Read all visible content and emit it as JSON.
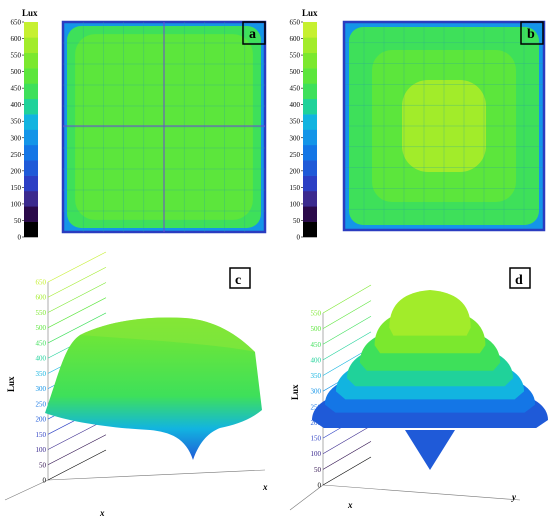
{
  "chart_data": [
    {
      "type": "heatmap",
      "panel": "a",
      "colorbar_title": "Lux",
      "colorbar_ticks": [
        0,
        50,
        100,
        150,
        200,
        250,
        300,
        350,
        400,
        450,
        500,
        550,
        600,
        650
      ],
      "zlim": [
        0,
        650
      ],
      "grid": true,
      "levels": [
        {
          "from": 0.0,
          "value": 290
        },
        {
          "from": 0.04,
          "value": 450
        },
        {
          "from": 0.12,
          "value": 470
        },
        {
          "from": 0.35,
          "value": 480
        }
      ]
    },
    {
      "type": "heatmap",
      "panel": "b",
      "colorbar_title": "Lux",
      "colorbar_ticks": [
        0,
        50,
        100,
        150,
        200,
        250,
        300,
        350,
        400,
        450,
        500,
        550,
        600,
        650
      ],
      "zlim": [
        0,
        650
      ],
      "grid": true,
      "levels": [
        {
          "from": 0.0,
          "value": 300
        },
        {
          "from": 0.05,
          "value": 450
        },
        {
          "from": 0.28,
          "value": 500
        },
        {
          "from": 0.58,
          "value": 560
        }
      ]
    },
    {
      "type": "surface3d",
      "panel": "c",
      "zlabel": "Lux",
      "xlabel": "x",
      "ylabel": "x",
      "zticks": [
        0,
        50,
        100,
        150,
        200,
        250,
        300,
        350,
        400,
        450,
        500,
        550,
        600,
        650
      ],
      "zlim": [
        0,
        650
      ],
      "peak": 480
    },
    {
      "type": "surface3d",
      "panel": "d",
      "zlabel": "Lux",
      "xlabel": "x",
      "ylabel": "y",
      "zticks": [
        0,
        50,
        100,
        150,
        200,
        250,
        300,
        350,
        400,
        450,
        500,
        550
      ],
      "zlim": [
        0,
        550
      ],
      "peak": 560
    }
  ],
  "colors": {
    "colorbar": [
      "#000000",
      "#2a0a4a",
      "#3b2a8e",
      "#2c3fc4",
      "#1f5ad8",
      "#1476e6",
      "#1495e8",
      "#12b4e0",
      "#20d29a",
      "#3ee05a",
      "#5ce63c",
      "#7be82e",
      "#a2ec2a",
      "#c6f030"
    ],
    "grid": "#2aa39a",
    "frame": "#2a3cc0"
  }
}
